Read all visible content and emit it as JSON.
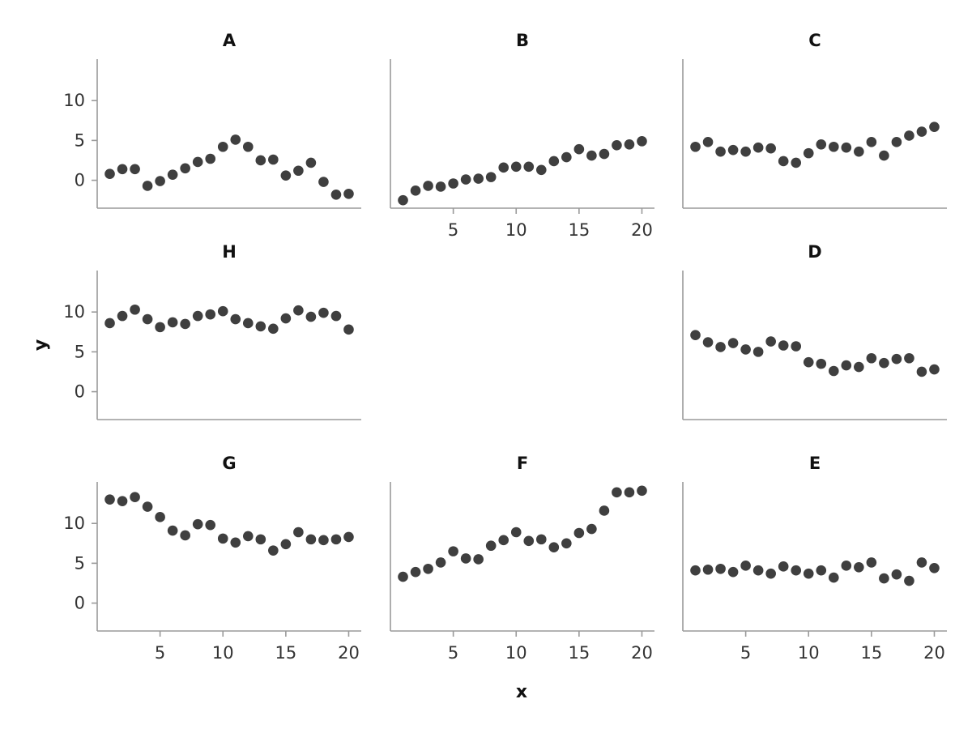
{
  "chart_data": {
    "type": "scatter",
    "layout": "faceted 3x3 grid, panels A B C / H (empty) D / G F E",
    "xlabel": "x",
    "ylabel": "y",
    "xlim": [
      0,
      21
    ],
    "ylim": [
      -3.5,
      15
    ],
    "x_ticks": [
      5,
      10,
      15,
      20
    ],
    "y_ticks": [
      0,
      5,
      10
    ],
    "grid": false,
    "legend": "none",
    "point_color": "#3f3f3f",
    "axis_color": "#9a9a9a",
    "x": [
      1,
      2,
      3,
      4,
      5,
      6,
      7,
      8,
      9,
      10,
      11,
      12,
      13,
      14,
      15,
      16,
      17,
      18,
      19,
      20
    ],
    "panels": [
      {
        "title": "A",
        "values": [
          0.8,
          1.4,
          1.4,
          -0.7,
          -0.1,
          0.7,
          1.5,
          2.3,
          2.7,
          4.2,
          5.1,
          4.2,
          2.5,
          2.6,
          0.6,
          1.2,
          2.2,
          -0.2,
          -1.8,
          -1.7
        ]
      },
      {
        "title": "B",
        "values": [
          -2.5,
          -1.3,
          -0.7,
          -0.8,
          -0.4,
          0.1,
          0.2,
          0.4,
          1.6,
          1.7,
          1.7,
          1.3,
          2.4,
          2.9,
          3.9,
          3.1,
          3.3,
          4.4,
          4.5,
          4.9
        ]
      },
      {
        "title": "C",
        "values": [
          4.2,
          4.8,
          3.6,
          3.8,
          3.6,
          4.1,
          4.0,
          2.4,
          2.2,
          3.4,
          4.5,
          4.2,
          4.1,
          3.6,
          4.8,
          3.1,
          4.8,
          5.6,
          6.1,
          6.7
        ]
      },
      {
        "title": "H",
        "values": [
          8.6,
          9.5,
          10.3,
          9.1,
          8.1,
          8.7,
          8.5,
          9.5,
          9.7,
          10.1,
          9.1,
          8.6,
          8.2,
          7.9,
          9.2,
          10.2,
          9.4,
          9.9,
          9.5,
          7.8
        ]
      },
      {
        "title": "D",
        "values": [
          7.1,
          6.2,
          5.6,
          6.1,
          5.3,
          5.0,
          6.3,
          5.8,
          5.7,
          3.7,
          3.5,
          2.6,
          3.3,
          3.1,
          4.2,
          3.6,
          4.1,
          4.2,
          2.5,
          2.8
        ]
      },
      {
        "title": "G",
        "values": [
          13.0,
          12.8,
          13.3,
          12.1,
          10.8,
          9.1,
          8.5,
          9.9,
          9.8,
          8.1,
          7.6,
          8.4,
          8.0,
          6.6,
          7.4,
          8.9,
          8.0,
          7.9,
          8.0,
          8.3
        ]
      },
      {
        "title": "F",
        "values": [
          3.3,
          3.9,
          4.3,
          5.1,
          6.5,
          5.6,
          5.5,
          7.2,
          7.9,
          8.9,
          7.8,
          8.0,
          7.0,
          7.5,
          8.8,
          9.3,
          11.6,
          13.9,
          13.9,
          14.1
        ]
      },
      {
        "title": "E",
        "values": [
          4.1,
          4.2,
          4.3,
          3.9,
          4.7,
          4.1,
          3.7,
          4.6,
          4.1,
          3.7,
          4.1,
          3.2,
          4.7,
          4.5,
          5.1,
          3.1,
          3.6,
          2.8,
          5.1,
          4.4
        ]
      }
    ]
  }
}
